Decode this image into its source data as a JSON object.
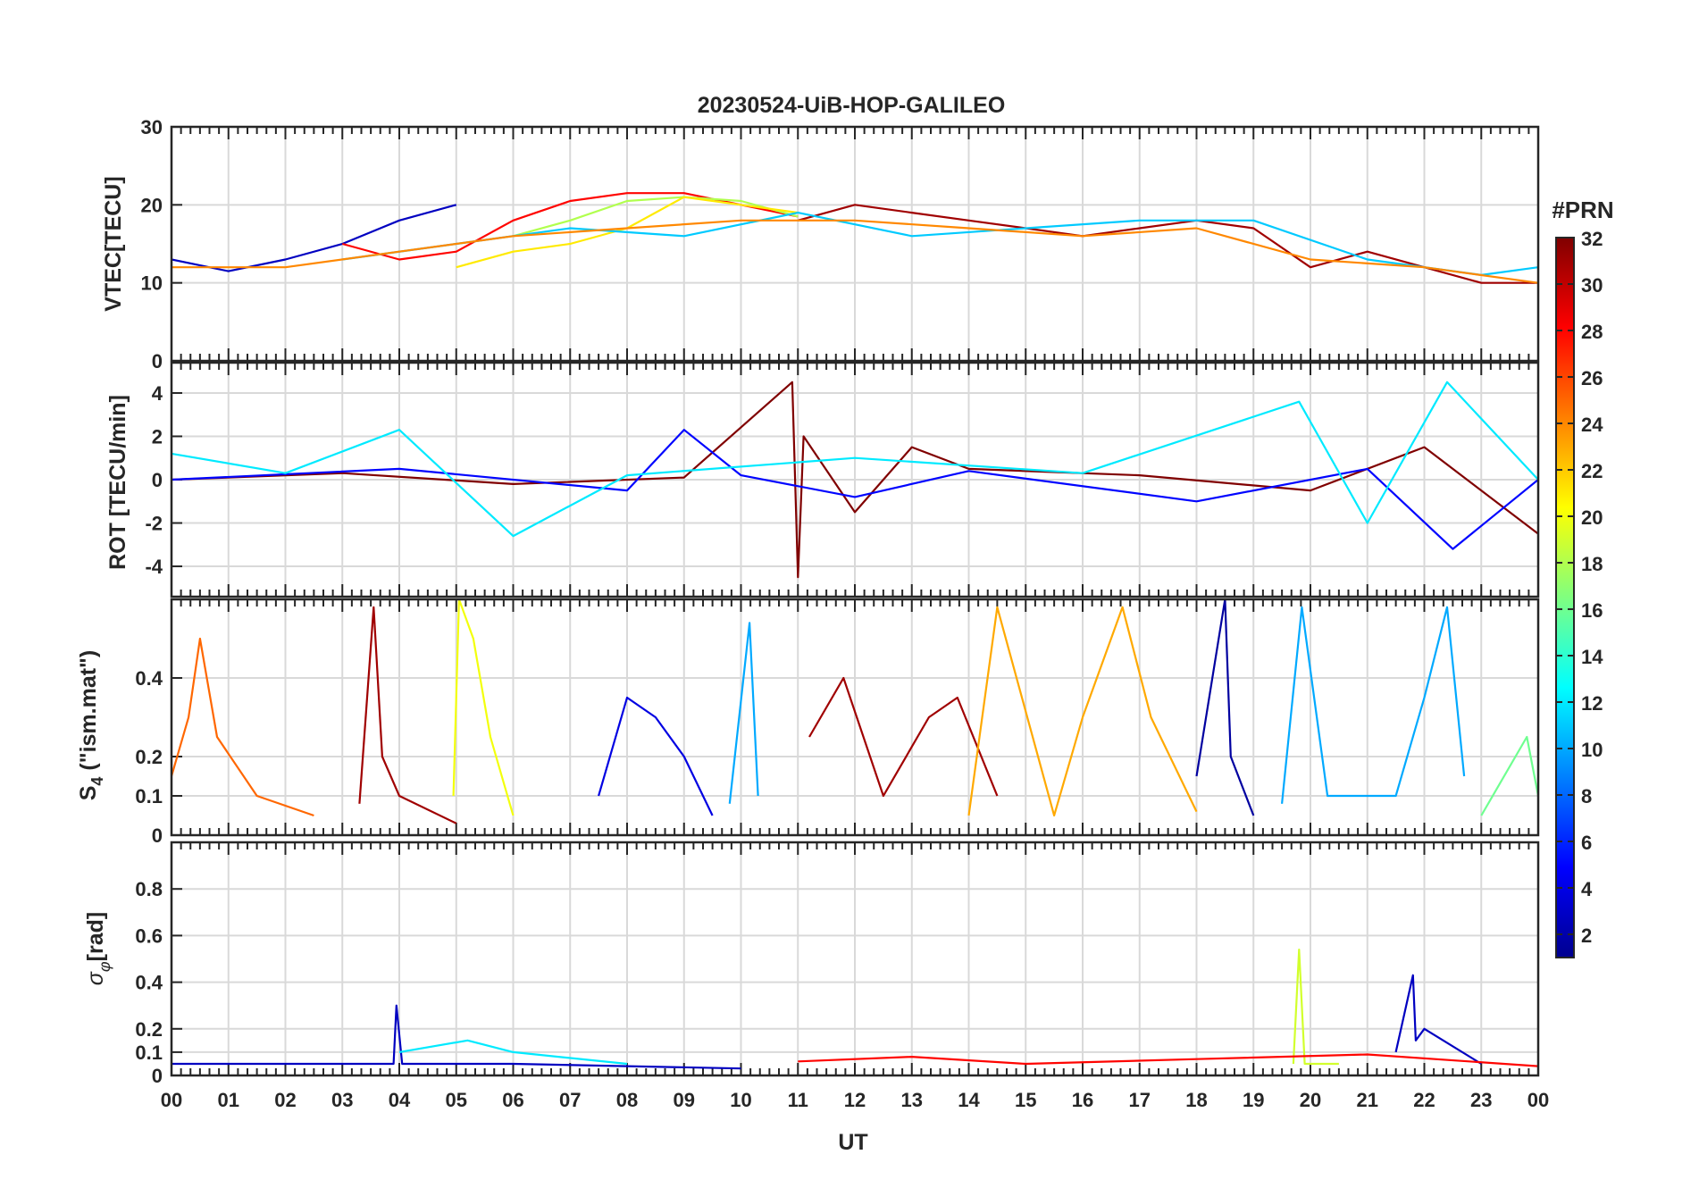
{
  "figure": {
    "title": "20230524-UiB-HOP-GALILEO",
    "xlabel": "UT"
  },
  "chart_data": {
    "type": "line",
    "title": "20230524-UiB-HOP-GALILEO",
    "xlabel": "UT",
    "xlim": [
      0,
      24
    ],
    "x_ticks": [
      0,
      1,
      2,
      3,
      4,
      5,
      6,
      7,
      8,
      9,
      10,
      11,
      12,
      13,
      14,
      15,
      16,
      17,
      18,
      19,
      20,
      21,
      22,
      23,
      24
    ],
    "x_tick_labels": [
      "00",
      "01",
      "02",
      "03",
      "04",
      "05",
      "06",
      "07",
      "08",
      "09",
      "10",
      "11",
      "12",
      "13",
      "14",
      "15",
      "16",
      "17",
      "18",
      "19",
      "20",
      "21",
      "22",
      "23",
      "00"
    ],
    "colorbar": {
      "title": "#PRN",
      "range": [
        1,
        32
      ],
      "ticks": [
        2,
        4,
        6,
        8,
        10,
        12,
        14,
        16,
        18,
        20,
        22,
        24,
        26,
        28,
        30,
        32
      ],
      "colormap": "jet"
    },
    "panels": [
      {
        "id": "vtec",
        "ylabel": "VTEC[TECU]",
        "ylim": [
          0,
          30
        ],
        "y_ticks": [
          0,
          10,
          20,
          30
        ],
        "y_tick_labels": [
          "0",
          "10",
          "20",
          "30"
        ],
        "series": [
          {
            "prn": 3,
            "x": [
              0,
              1,
              2,
              3,
              4,
              5
            ],
            "y": [
              13,
              11.5,
              13,
              15,
              18,
              20
            ]
          },
          {
            "prn": 28,
            "x": [
              3,
              4,
              5,
              6,
              7,
              8,
              9,
              10,
              11
            ],
            "y": [
              15,
              13,
              14,
              18,
              20.5,
              21.5,
              21.5,
              20,
              18.5
            ]
          },
          {
            "prn": 18,
            "x": [
              6,
              7,
              8,
              9,
              10,
              11
            ],
            "y": [
              16,
              18,
              20.5,
              21,
              20.5,
              18.5
            ]
          },
          {
            "prn": 21,
            "x": [
              5,
              6,
              7,
              8,
              9,
              10,
              11
            ],
            "y": [
              12,
              14,
              15,
              17,
              21,
              20,
              19
            ]
          },
          {
            "prn": 31,
            "x": [
              11,
              12,
              13,
              14,
              15,
              16,
              17,
              18,
              19,
              20,
              21,
              22,
              23,
              24
            ],
            "y": [
              18,
              20,
              19,
              18,
              17,
              16,
              17,
              18,
              17,
              12,
              14,
              12,
              10,
              10
            ]
          },
          {
            "prn": 11,
            "x": [
              3,
              5,
              7,
              9,
              11,
              13,
              15,
              17,
              19,
              21,
              23,
              24
            ],
            "y": [
              13,
              15,
              17,
              16,
              19,
              16,
              17,
              18,
              18,
              13,
              11,
              12
            ]
          },
          {
            "prn": 24,
            "x": [
              0,
              2,
              4,
              6,
              8,
              10,
              12,
              14,
              16,
              18,
              20,
              22,
              24
            ],
            "y": [
              12,
              12,
              14,
              16,
              17,
              18,
              18,
              17,
              16,
              17,
              13,
              12,
              10
            ]
          }
        ]
      },
      {
        "id": "rot",
        "ylabel": "ROT [TECU/min]",
        "ylim": [
          -5.4,
          5.4
        ],
        "y_ticks": [
          -4,
          -2,
          0,
          2,
          4
        ],
        "y_tick_labels": [
          "-4",
          "-2",
          "0",
          "2",
          "4"
        ],
        "series": [
          {
            "prn": 32,
            "x": [
              0,
              3,
              6,
              9,
              10.9,
              11,
              11.1,
              12,
              13,
              14,
              17,
              20,
              22,
              24
            ],
            "y": [
              0,
              0.3,
              -0.2,
              0.1,
              4.5,
              -4.5,
              2,
              -1.5,
              1.5,
              0.5,
              0.2,
              -0.5,
              1.5,
              -2.5
            ]
          },
          {
            "prn": 5,
            "x": [
              0,
              4,
              8,
              9,
              10,
              12,
              14,
              18,
              21,
              22.5,
              24
            ],
            "y": [
              0,
              0.5,
              -0.5,
              2.3,
              0.2,
              -0.8,
              0.4,
              -1,
              0.5,
              -3.2,
              0
            ]
          },
          {
            "prn": 12,
            "x": [
              0,
              2,
              4,
              6,
              8,
              12,
              16,
              19.8,
              21,
              22.4,
              24
            ],
            "y": [
              1.2,
              0.3,
              2.3,
              -2.6,
              0.2,
              1,
              0.3,
              3.6,
              -2,
              4.5,
              0
            ]
          }
        ]
      },
      {
        "id": "s4",
        "ylabel": "S4 (\"ism.mat\")",
        "ylabel_main": "S",
        "ylabel_sub": "4",
        "ylabel_rest": " (\"ism.mat\")",
        "ylim": [
          0,
          0.6
        ],
        "y_ticks": [
          0,
          0.1,
          0.2,
          0.4
        ],
        "y_tick_labels": [
          "0",
          "0.1",
          "0.2",
          "0.4"
        ],
        "series": [
          {
            "prn": 25,
            "x": [
              0,
              0.3,
              0.5,
              0.8,
              1.5,
              2.5
            ],
            "y": [
              0.15,
              0.3,
              0.5,
              0.25,
              0.1,
              0.05
            ]
          },
          {
            "prn": 31,
            "x": [
              3.3,
              3.55,
              3.7,
              4,
              5
            ],
            "y": [
              0.08,
              0.58,
              0.2,
              0.1,
              0.03
            ]
          },
          {
            "prn": 20,
            "x": [
              4.95,
              5.05,
              5.3,
              5.6,
              6
            ],
            "y": [
              0.1,
              0.6,
              0.5,
              0.25,
              0.05
            ]
          },
          {
            "prn": 4,
            "x": [
              7.5,
              8,
              8.5,
              9,
              9.5
            ],
            "y": [
              0.1,
              0.35,
              0.3,
              0.2,
              0.05
            ]
          },
          {
            "prn": 10,
            "x": [
              9.8,
              10.15,
              10.3
            ],
            "y": [
              0.08,
              0.54,
              0.1
            ]
          },
          {
            "prn": 31,
            "x": [
              11.2,
              11.8,
              12.5,
              13.3,
              13.8,
              14.5
            ],
            "y": [
              0.25,
              0.4,
              0.1,
              0.3,
              0.35,
              0.1
            ]
          },
          {
            "prn": 23,
            "x": [
              14,
              14.5,
              15.5,
              16,
              16.7,
              17.2,
              18
            ],
            "y": [
              0.05,
              0.58,
              0.05,
              0.3,
              0.58,
              0.3,
              0.06
            ]
          },
          {
            "prn": 2,
            "x": [
              18,
              18.5,
              18.6,
              19
            ],
            "y": [
              0.15,
              0.6,
              0.2,
              0.05
            ]
          },
          {
            "prn": 10,
            "x": [
              19.5,
              19.85,
              20.3,
              21.5,
              22,
              22.4,
              22.7
            ],
            "y": [
              0.08,
              0.58,
              0.1,
              0.1,
              0.35,
              0.58,
              0.15
            ]
          },
          {
            "prn": 16,
            "x": [
              23,
              23.8,
              24
            ],
            "y": [
              0.05,
              0.25,
              0.1
            ]
          }
        ]
      },
      {
        "id": "sigma_phi",
        "ylabel": "σφ[rad]",
        "ylabel_main": "σ",
        "ylabel_sub": "φ",
        "ylabel_rest": "[rad]",
        "ylim": [
          0,
          1
        ],
        "y_ticks": [
          0,
          0.1,
          0.2,
          0.4,
          0.6,
          0.8
        ],
        "y_tick_labels": [
          "0",
          "0.1",
          "0.2",
          "0.4",
          "0.6",
          "0.8"
        ],
        "series": [
          {
            "prn": 3,
            "x": [
              0,
              3.9,
              3.95,
              4.05,
              6,
              10
            ],
            "y": [
              0.05,
              0.05,
              0.3,
              0.05,
              0.05,
              0.03
            ]
          },
          {
            "prn": 12,
            "x": [
              4,
              5.2,
              6,
              8
            ],
            "y": [
              0.1,
              0.15,
              0.1,
              0.05
            ]
          },
          {
            "prn": 19,
            "x": [
              19.7,
              19.8,
              19.9,
              20.5
            ],
            "y": [
              0.05,
              0.54,
              0.05,
              0.05
            ]
          },
          {
            "prn": 3,
            "x": [
              21.5,
              21.8,
              21.85,
              22,
              23
            ],
            "y": [
              0.1,
              0.43,
              0.15,
              0.2,
              0.05
            ]
          },
          {
            "prn": 28,
            "x": [
              11,
              13,
              15,
              18,
              21,
              24
            ],
            "y": [
              0.06,
              0.08,
              0.05,
              0.07,
              0.09,
              0.04
            ]
          }
        ]
      }
    ]
  }
}
